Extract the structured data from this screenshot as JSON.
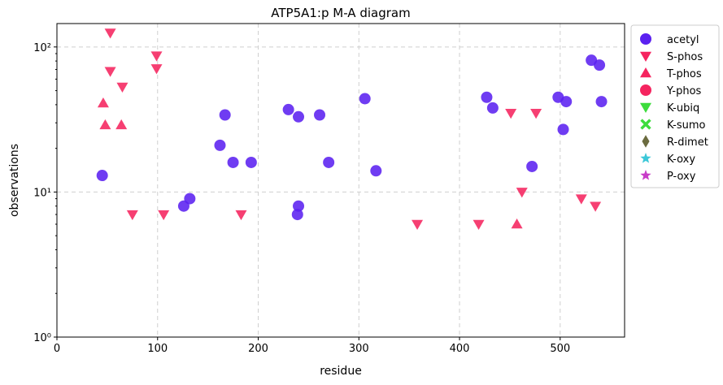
{
  "chart_data": {
    "type": "scatter",
    "title": "ATP5A1:p M-A diagram",
    "xlabel": "residue",
    "ylabel": "observations",
    "xlim": [
      0,
      564
    ],
    "ylim": [
      1,
      145
    ],
    "yscale": "log",
    "grid": true,
    "legend_position": "outside-top-right",
    "x_ticks": [
      0,
      100,
      200,
      300,
      400,
      500
    ],
    "x_tick_labels": [
      "0",
      "100",
      "200",
      "300",
      "400",
      "500"
    ],
    "y_ticks": [
      1,
      10,
      100
    ],
    "y_tick_labels": [
      "10⁰",
      "10¹",
      "10²"
    ],
    "series": [
      {
        "name": "acetyl",
        "marker": "circle",
        "color": "#5b21f0",
        "points": [
          [
            45,
            13
          ],
          [
            126,
            8
          ],
          [
            132,
            9
          ],
          [
            162,
            21
          ],
          [
            167,
            34
          ],
          [
            175,
            16
          ],
          [
            193,
            16
          ],
          [
            230,
            37
          ],
          [
            239,
            7
          ],
          [
            240,
            8
          ],
          [
            240,
            33
          ],
          [
            261,
            34
          ],
          [
            270,
            16
          ],
          [
            306,
            44
          ],
          [
            317,
            14
          ],
          [
            427,
            45
          ],
          [
            433,
            38
          ],
          [
            472,
            15
          ],
          [
            498,
            45
          ],
          [
            503,
            27
          ],
          [
            506,
            42
          ],
          [
            531,
            81
          ],
          [
            539,
            75
          ],
          [
            541,
            42
          ]
        ]
      },
      {
        "name": "S-phos",
        "marker": "triangle-down",
        "color": "#f5245f",
        "points": [
          [
            53,
            125
          ],
          [
            53,
            68
          ],
          [
            65,
            53
          ],
          [
            75,
            7
          ],
          [
            99,
            87
          ],
          [
            99,
            71
          ],
          [
            106,
            7
          ],
          [
            183,
            7
          ],
          [
            358,
            6
          ],
          [
            419,
            6
          ],
          [
            451,
            35
          ],
          [
            462,
            10
          ],
          [
            476,
            35
          ],
          [
            521,
            9
          ],
          [
            535,
            8
          ]
        ]
      },
      {
        "name": "T-phos",
        "marker": "triangle-up",
        "color": "#f5245f",
        "points": [
          [
            46,
            41
          ],
          [
            48,
            29
          ],
          [
            64,
            29
          ],
          [
            457,
            6
          ]
        ]
      },
      {
        "name": "Y-phos",
        "marker": "circle",
        "color": "#f5245f",
        "points": []
      },
      {
        "name": "K-ubiq",
        "marker": "triangle-down",
        "color": "#3ddc3d",
        "points": []
      },
      {
        "name": "K-sumo",
        "marker": "x",
        "color": "#3ddc3d",
        "points": []
      },
      {
        "name": "R-dimet",
        "marker": "diamond",
        "color": "#6b6b3f",
        "points": []
      },
      {
        "name": "K-oxy",
        "marker": "star",
        "color": "#3cc8d8",
        "points": []
      },
      {
        "name": "P-oxy",
        "marker": "star",
        "color": "#c83cc8",
        "points": []
      }
    ]
  }
}
